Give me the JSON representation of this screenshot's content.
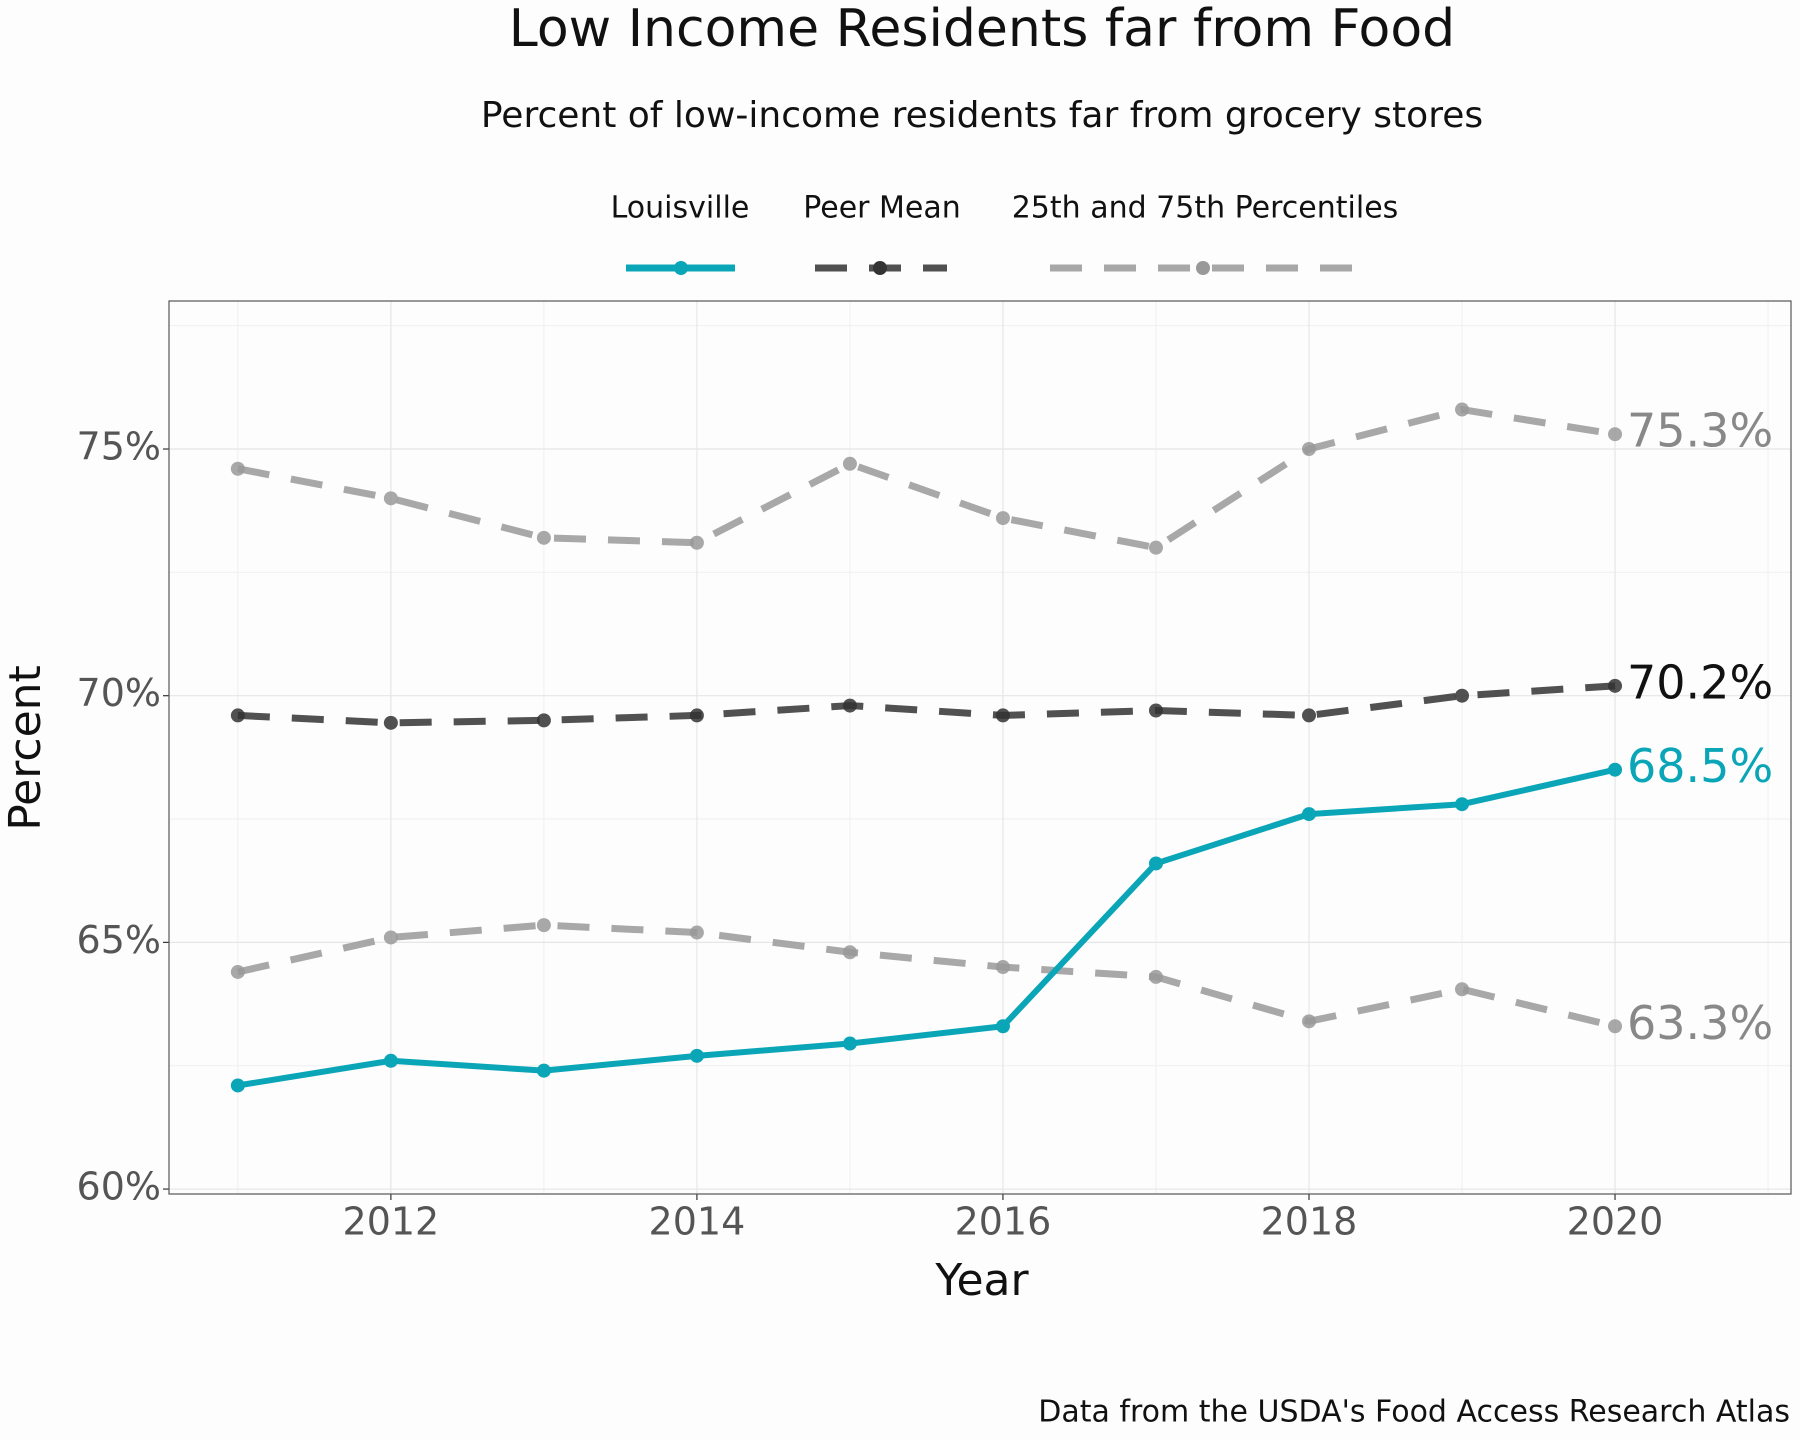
{
  "chart_data": {
    "type": "line",
    "title": "Low Income Residents far from Food",
    "subtitle": "Percent of low-income residents far from grocery stores",
    "x_label": "Year",
    "y_label": "Percent",
    "caption": "Data from the USDA's Food Access Research Atlas",
    "x": [
      2011,
      2012,
      2013,
      2014,
      2015,
      2016,
      2017,
      2018,
      2019,
      2020
    ],
    "xlim": [
      2010.55,
      2021.15
    ],
    "ylim": [
      59.9,
      78
    ],
    "xticks": [
      2012,
      2014,
      2016,
      2018,
      2020
    ],
    "yticks": [
      {
        "value": 60,
        "label": "60%"
      },
      {
        "value": 65,
        "label": "65%"
      },
      {
        "value": 70,
        "label": "70%"
      },
      {
        "value": 75,
        "label": "75%"
      }
    ],
    "grid": true,
    "legend": "top",
    "series": [
      {
        "name": "Louisville",
        "color": "#0aa6b8",
        "dash": false,
        "lines": [
          {
            "values": [
              62.1,
              62.6,
              62.4,
              62.7,
              62.95,
              63.3,
              66.6,
              67.6,
              67.8,
              68.5
            ],
            "value_labels": [
              null,
              null,
              null,
              null,
              null,
              null,
              null,
              null,
              null,
              "68.5%"
            ]
          }
        ]
      },
      {
        "name": "Peer Mean",
        "color": "#333333",
        "dash": true,
        "lines": [
          {
            "values": [
              69.6,
              69.45,
              69.5,
              69.6,
              69.8,
              69.6,
              69.7,
              69.6,
              70.0,
              70.2
            ],
            "value_labels": [
              null,
              null,
              null,
              null,
              null,
              null,
              null,
              null,
              null,
              "70.2%"
            ]
          }
        ]
      },
      {
        "name": "25th and 75th Percentiles",
        "color": "#999999",
        "dash": true,
        "lines": [
          {
            "values": [
              74.6,
              74.0,
              73.2,
              73.1,
              74.7,
              73.6,
              73.0,
              75.0,
              75.8,
              75.3
            ],
            "value_labels": [
              null,
              null,
              null,
              null,
              null,
              null,
              null,
              null,
              null,
              "75.3%"
            ]
          },
          {
            "values": [
              64.4,
              65.1,
              65.35,
              65.2,
              64.8,
              64.5,
              64.3,
              63.4,
              64.05,
              63.3
            ],
            "value_labels": [
              null,
              null,
              null,
              null,
              null,
              null,
              null,
              null,
              null,
              "63.3%"
            ]
          }
        ]
      }
    ]
  }
}
